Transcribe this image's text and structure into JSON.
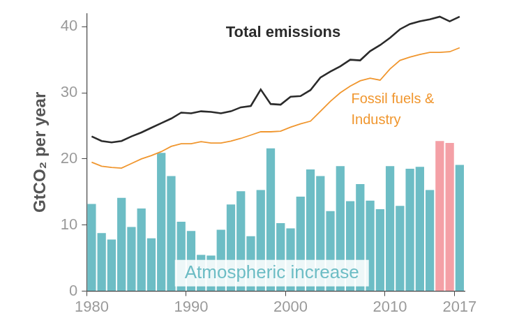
{
  "chart_data": {
    "type": "bar",
    "y_label": "GtCO₂ per year",
    "categories": [
      "1980",
      null,
      null,
      null,
      null,
      null,
      null,
      null,
      null,
      null,
      "1990",
      null,
      null,
      null,
      null,
      null,
      null,
      null,
      null,
      null,
      "2000",
      null,
      null,
      null,
      null,
      null,
      null,
      null,
      null,
      null,
      "2010",
      null,
      null,
      null,
      null,
      null,
      null,
      "2017"
    ],
    "ylim": [
      0,
      42
    ],
    "yticks": [
      0,
      10,
      20,
      30,
      40
    ],
    "grid": false,
    "series": [
      {
        "name": "Atmospheric increase",
        "type": "bar",
        "colors": [
          "#6dbdc5",
          "#6dbdc5",
          "#6dbdc5",
          "#6dbdc5",
          "#6dbdc5",
          "#6dbdc5",
          "#6dbdc5",
          "#6dbdc5",
          "#6dbdc5",
          "#6dbdc5",
          "#6dbdc5",
          "#6dbdc5",
          "#6dbdc5",
          "#6dbdc5",
          "#6dbdc5",
          "#6dbdc5",
          "#6dbdc5",
          "#6dbdc5",
          "#6dbdc5",
          "#6dbdc5",
          "#6dbdc5",
          "#6dbdc5",
          "#6dbdc5",
          "#6dbdc5",
          "#6dbdc5",
          "#6dbdc5",
          "#6dbdc5",
          "#6dbdc5",
          "#6dbdc5",
          "#6dbdc5",
          "#6dbdc5",
          "#6dbdc5",
          "#6dbdc5",
          "#6dbdc5",
          "#6dbdc5",
          "#f4a0a6",
          "#f4a0a6",
          "#6dbdc5"
        ],
        "values": [
          13.2,
          8.8,
          7.8,
          14.1,
          9.7,
          12.5,
          8.0,
          20.9,
          17.4,
          10.5,
          9.1,
          5.5,
          5.4,
          9.3,
          13.1,
          15.1,
          8.3,
          15.3,
          21.6,
          10.3,
          9.5,
          14.3,
          18.4,
          17.4,
          12.1,
          18.9,
          13.6,
          16.2,
          13.7,
          12.4,
          18.9,
          12.9,
          18.5,
          18.8,
          15.3,
          22.7,
          22.4,
          19.1
        ]
      },
      {
        "name": "Total emissions",
        "type": "line",
        "color": "#2b2b2b",
        "values": [
          23.4,
          22.7,
          22.5,
          22.7,
          23.4,
          24.0,
          24.7,
          25.4,
          26.1,
          27.0,
          26.9,
          27.2,
          27.1,
          26.9,
          27.2,
          27.8,
          28.0,
          30.5,
          28.3,
          28.2,
          29.4,
          29.5,
          30.4,
          32.3,
          33.2,
          34.0,
          35.0,
          34.9,
          36.3,
          37.2,
          38.3,
          39.6,
          40.4,
          40.8,
          41.1,
          41.5,
          40.8,
          41.5
        ]
      },
      {
        "name": "Fossil fuels & Industry",
        "type": "line",
        "color": "#f0962e",
        "values": [
          19.5,
          18.9,
          18.7,
          18.6,
          19.3,
          20.0,
          20.5,
          21.1,
          21.9,
          22.3,
          22.3,
          22.6,
          22.4,
          22.4,
          22.7,
          23.1,
          23.6,
          24.1,
          24.1,
          24.2,
          24.8,
          25.3,
          25.7,
          27.2,
          28.7,
          30.0,
          31.0,
          31.8,
          32.2,
          31.9,
          33.6,
          34.9,
          35.4,
          35.8,
          36.1,
          36.1,
          36.2,
          36.8
        ]
      }
    ]
  }
}
